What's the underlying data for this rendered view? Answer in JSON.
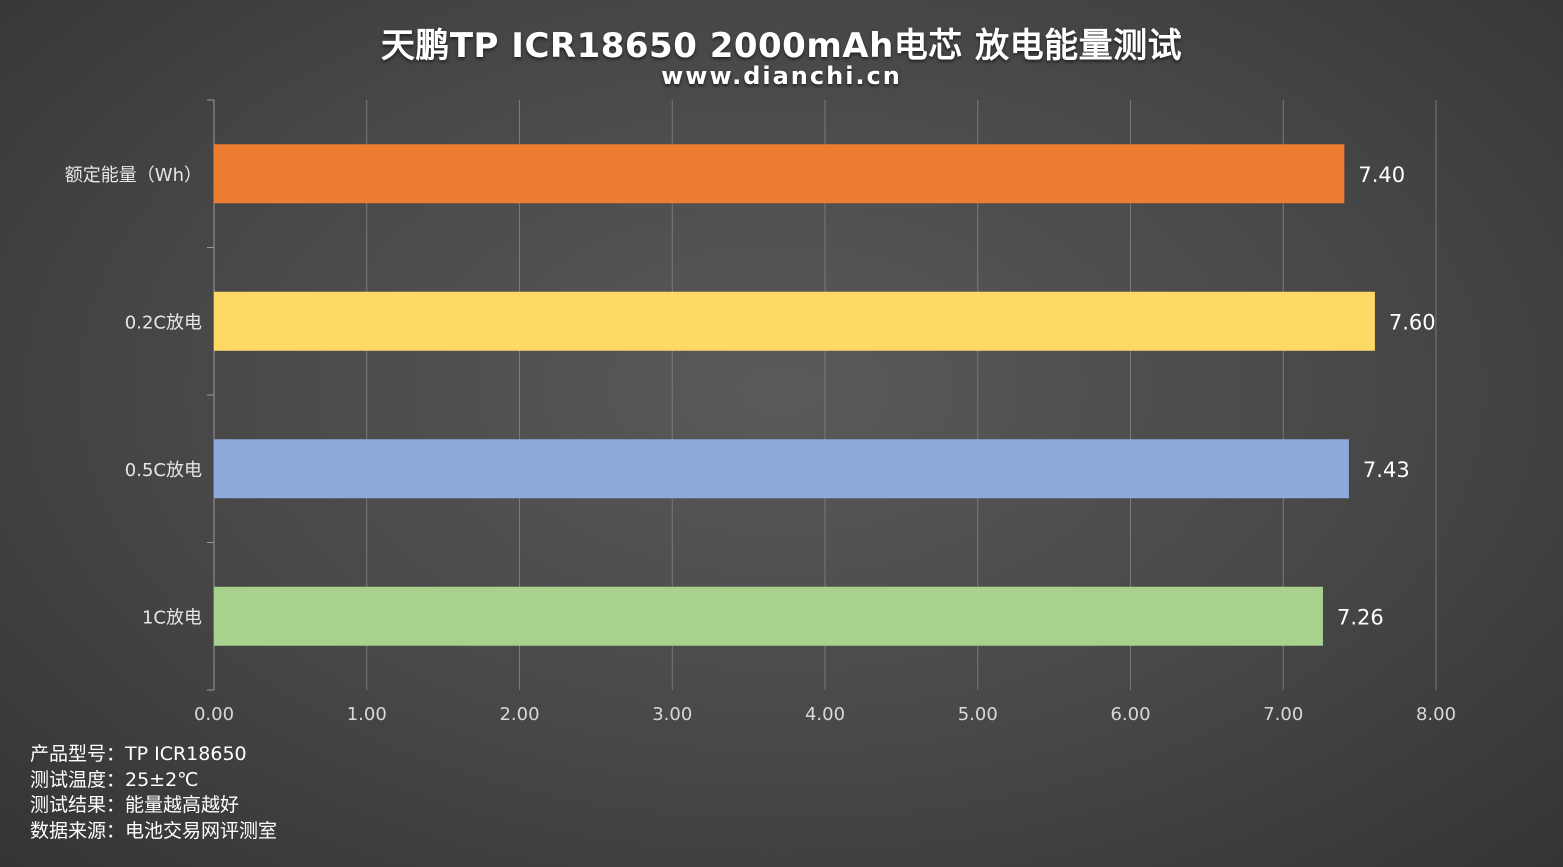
{
  "header": {
    "title": "天鹏TP ICR18650 2000mAh电芯 放电能量测试",
    "subtitle": "www.dianchi.cn"
  },
  "notes": [
    "产品型号：TP ICR18650",
    "测试温度：25±2℃",
    "测试结果：能量越高越好",
    "数据来源：电池交易网评测室"
  ],
  "chart_data": {
    "type": "bar",
    "orientation": "horizontal",
    "categories": [
      "额定能量（Wh）",
      "0.2C放电",
      "0.5C放电",
      "1C放电"
    ],
    "values": [
      7.4,
      7.6,
      7.43,
      7.26
    ],
    "value_labels": [
      "7.40",
      "7.60",
      "7.43",
      "7.26"
    ],
    "colors": [
      "#ED7D31",
      "#FFD966",
      "#8EA9DB",
      "#A9D18E"
    ],
    "xlim": [
      0,
      8
    ],
    "xticks": [
      "0.00",
      "1.00",
      "2.00",
      "3.00",
      "4.00",
      "5.00",
      "6.00",
      "7.00",
      "8.00"
    ],
    "grid": true,
    "legend": "none"
  }
}
